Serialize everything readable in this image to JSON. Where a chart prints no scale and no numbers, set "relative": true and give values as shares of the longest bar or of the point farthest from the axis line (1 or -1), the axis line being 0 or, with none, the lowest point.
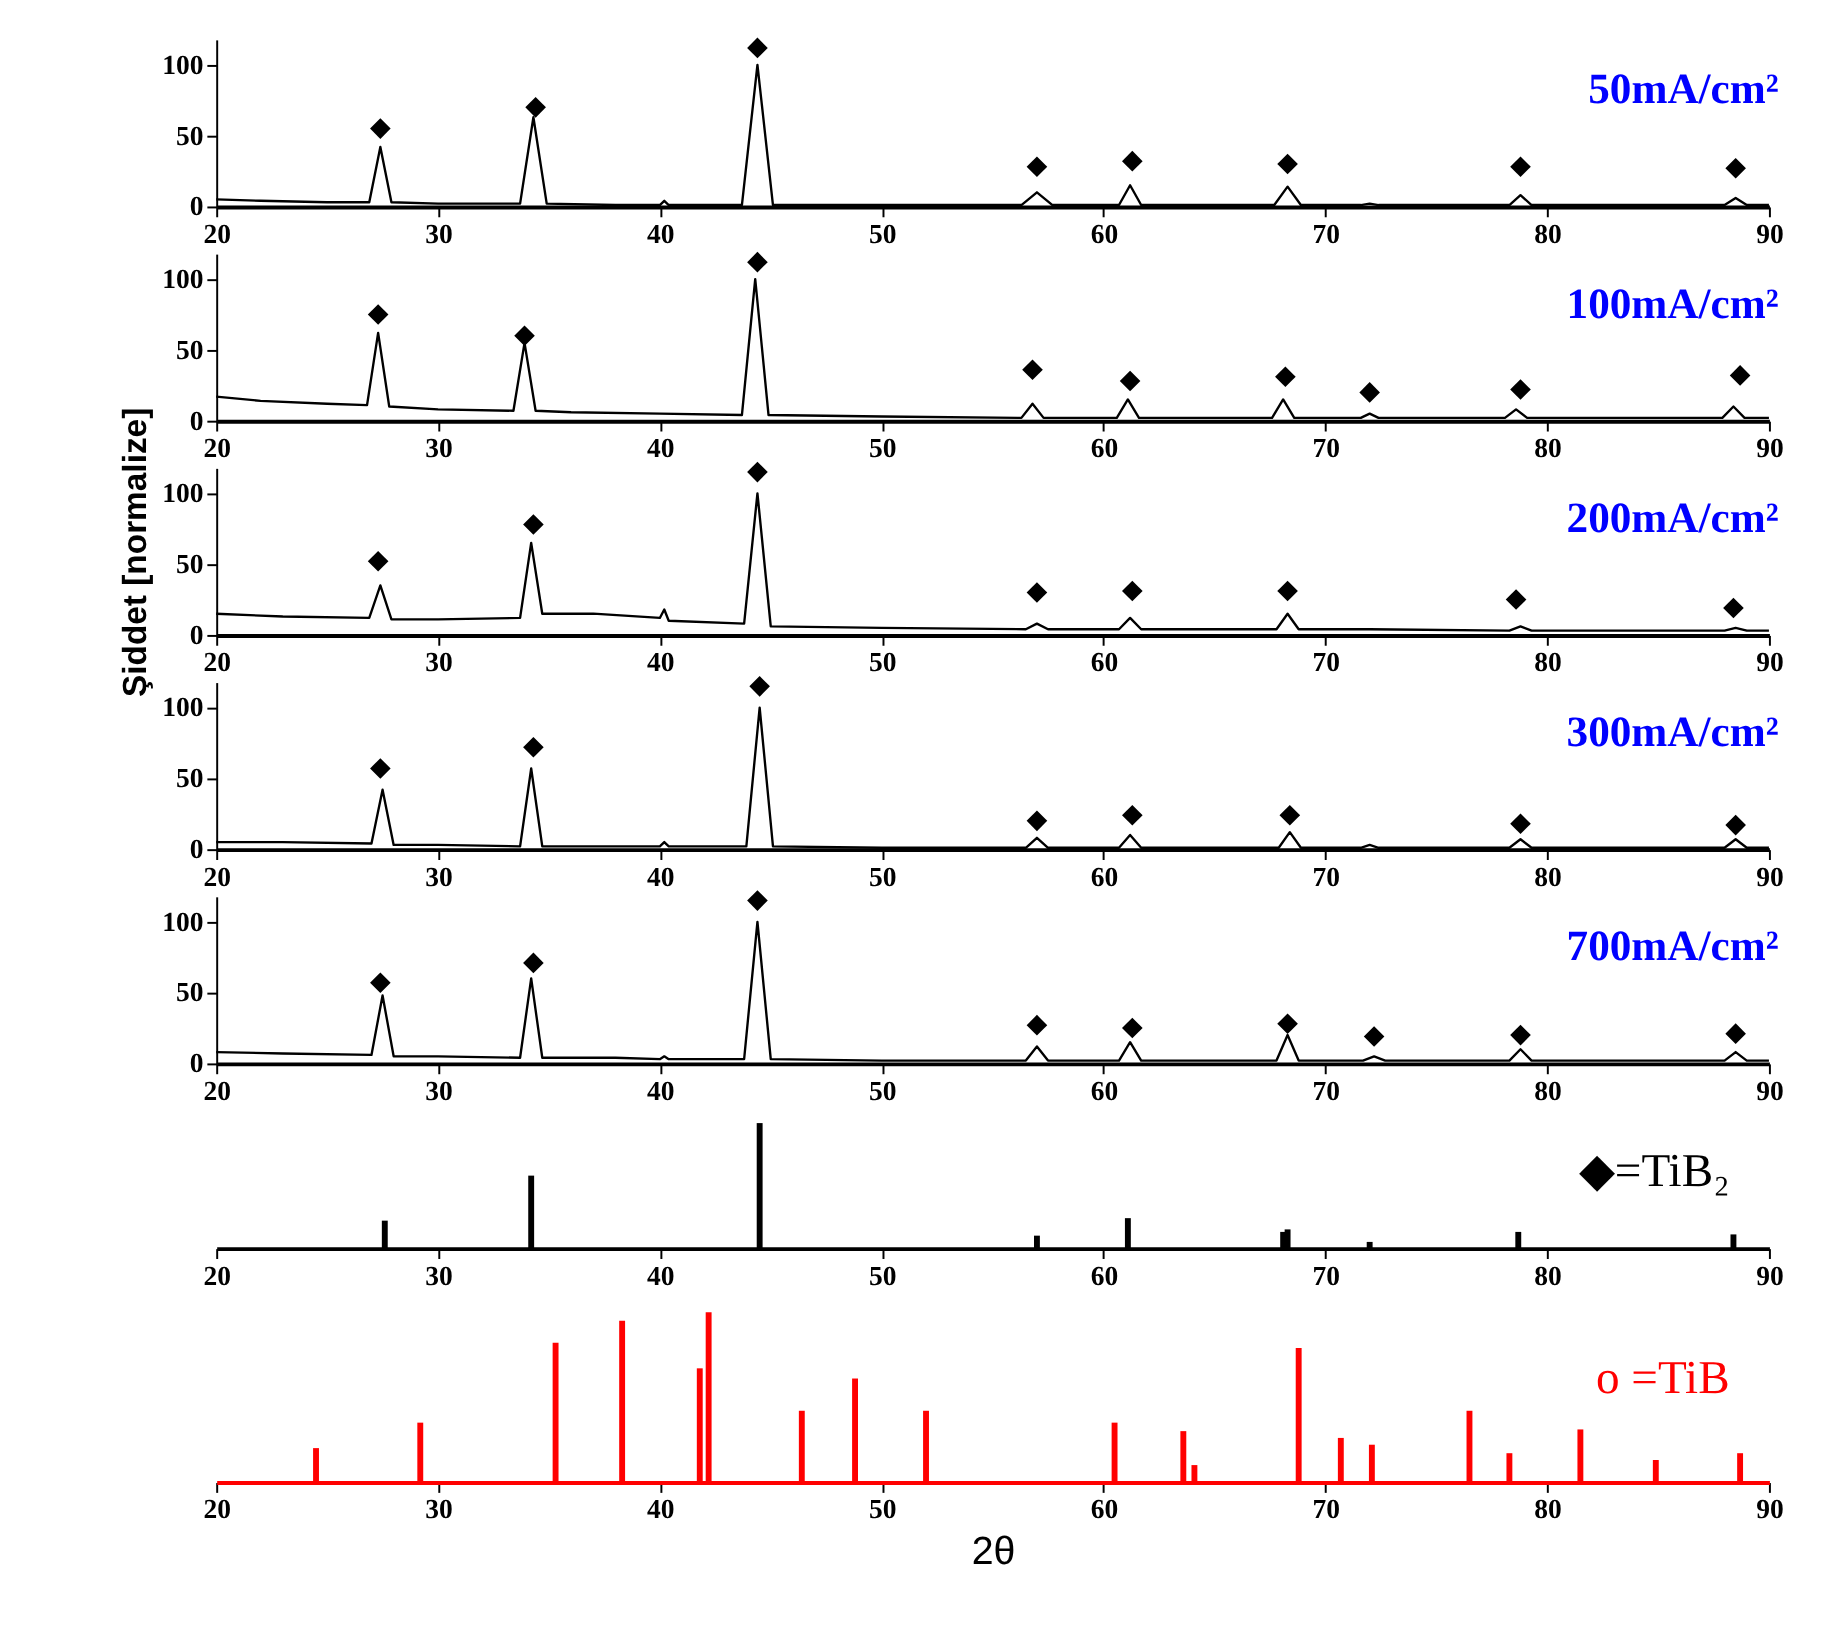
{
  "chart_data": [
    {
      "type": "line",
      "xlim": [
        20,
        90
      ],
      "xticks": [
        20,
        30,
        40,
        50,
        60,
        70,
        80,
        90
      ],
      "ylim": [
        0,
        118
      ],
      "yticks": [
        0,
        50,
        100
      ],
      "annotations": [
        "50mA/cm²"
      ],
      "series": [
        {
          "type": "line",
          "color": "#000000",
          "line_style": "solid",
          "x": [
            20,
            22,
            25,
            26.9,
            27.4,
            27.9,
            30,
            33.7,
            34.3,
            34.9,
            38,
            40,
            40.2,
            40.4,
            43.7,
            44.4,
            45.1,
            50,
            56.3,
            57,
            57.7,
            60.7,
            61.2,
            61.7,
            65,
            67.7,
            68.3,
            68.9,
            71.6,
            72,
            72.4,
            78.3,
            78.8,
            79.3,
            85,
            88,
            88.5,
            89,
            90
          ],
          "values": [
            5,
            4,
            3,
            3,
            42,
            3,
            2,
            2,
            63,
            2,
            1,
            1,
            4,
            1,
            1,
            100,
            1,
            1,
            1,
            10,
            1,
            1,
            15,
            1,
            1,
            1,
            14,
            1,
            1,
            2,
            1,
            1,
            8,
            1,
            1,
            1,
            6,
            1,
            1
          ]
        },
        {
          "type": "scatter",
          "color": "#000000",
          "marker": "diamond",
          "x": [
            27.4,
            34.4,
            44.4,
            57,
            61.3,
            68.3,
            78.8,
            88.5
          ],
          "values": [
            55,
            70,
            112,
            28,
            32,
            30,
            28,
            27
          ]
        }
      ]
    },
    {
      "type": "line",
      "xlim": [
        20,
        90
      ],
      "xticks": [
        20,
        30,
        40,
        50,
        60,
        70,
        80,
        90
      ],
      "ylim": [
        0,
        118
      ],
      "yticks": [
        0,
        50,
        100
      ],
      "annotations": [
        "100mA/cm²"
      ],
      "series": [
        {
          "type": "line",
          "color": "#000000",
          "line_style": "solid",
          "x": [
            20,
            22,
            25,
            26.8,
            27.3,
            27.8,
            30,
            33.4,
            33.9,
            34.4,
            36,
            40,
            43.7,
            44.3,
            44.9,
            50,
            56.3,
            56.8,
            57.3,
            60.6,
            61.1,
            61.6,
            65,
            67.6,
            68.1,
            68.6,
            71.6,
            72,
            72.4,
            78.1,
            78.6,
            79.1,
            85,
            87.9,
            88.4,
            88.9,
            90
          ],
          "values": [
            17,
            14,
            12,
            11,
            62,
            10,
            8,
            7,
            55,
            7,
            6,
            5,
            4,
            100,
            4,
            3,
            2,
            12,
            2,
            2,
            15,
            2,
            2,
            2,
            15,
            2,
            2,
            5,
            2,
            2,
            8,
            2,
            2,
            2,
            10,
            2,
            2
          ]
        },
        {
          "type": "scatter",
          "color": "#000000",
          "marker": "diamond",
          "x": [
            27.3,
            33.9,
            44.4,
            56.8,
            61.2,
            68.2,
            72,
            78.8,
            88.7
          ],
          "values": [
            75,
            60,
            112,
            36,
            28,
            31,
            20,
            22,
            32
          ]
        }
      ]
    },
    {
      "type": "line",
      "xlim": [
        20,
        90
      ],
      "xticks": [
        20,
        30,
        40,
        50,
        60,
        70,
        80,
        90
      ],
      "ylim": [
        0,
        118
      ],
      "yticks": [
        0,
        50,
        100
      ],
      "ylabel": "Şiddet [normalize]",
      "annotations": [
        "200mA/cm²"
      ],
      "series": [
        {
          "type": "line",
          "color": "#000000",
          "line_style": "solid",
          "x": [
            20,
            23,
            26.9,
            27.4,
            27.9,
            30,
            33.7,
            34.2,
            34.7,
            37,
            40,
            40.2,
            40.4,
            43.8,
            44.4,
            45,
            50,
            56.5,
            57,
            57.5,
            60.7,
            61.2,
            61.7,
            65,
            67.8,
            68.3,
            68.8,
            72,
            78.3,
            78.8,
            79.3,
            85,
            88,
            88.5,
            89,
            90
          ],
          "values": [
            15,
            13,
            12,
            35,
            11,
            11,
            12,
            65,
            15,
            15,
            12,
            18,
            10,
            8,
            100,
            6,
            5,
            4,
            8,
            4,
            4,
            12,
            4,
            4,
            4,
            15,
            4,
            4,
            3,
            6,
            3,
            3,
            3,
            5,
            3,
            3
          ]
        },
        {
          "type": "scatter",
          "color": "#000000",
          "marker": "diamond",
          "x": [
            27.3,
            34.3,
            44.4,
            57,
            61.3,
            68.3,
            78.6,
            88.4
          ],
          "values": [
            52,
            78,
            115,
            30,
            31,
            31,
            25,
            19
          ]
        }
      ]
    },
    {
      "type": "line",
      "xlim": [
        20,
        90
      ],
      "xticks": [
        20,
        30,
        40,
        50,
        60,
        70,
        80,
        90
      ],
      "ylim": [
        0,
        118
      ],
      "yticks": [
        0,
        50,
        100
      ],
      "annotations": [
        "300mA/cm²"
      ],
      "series": [
        {
          "type": "line",
          "color": "#000000",
          "line_style": "solid",
          "x": [
            20,
            23,
            27,
            27.5,
            28,
            30,
            33.7,
            34.2,
            34.7,
            38,
            40,
            40.2,
            40.4,
            43.9,
            44.5,
            45.1,
            50,
            56.5,
            57,
            57.5,
            60.7,
            61.2,
            61.7,
            65,
            67.9,
            68.4,
            68.9,
            71.6,
            72,
            72.4,
            78.3,
            78.8,
            79.3,
            85,
            88,
            88.5,
            89,
            90
          ],
          "values": [
            5,
            5,
            4,
            42,
            3,
            3,
            2,
            57,
            2,
            2,
            2,
            5,
            2,
            2,
            100,
            2,
            1,
            1,
            8,
            1,
            1,
            10,
            1,
            1,
            1,
            12,
            1,
            1,
            3,
            1,
            1,
            7,
            1,
            1,
            1,
            7,
            1,
            1
          ]
        },
        {
          "type": "scatter",
          "color": "#000000",
          "marker": "diamond",
          "x": [
            27.4,
            34.3,
            44.5,
            57,
            61.3,
            68.4,
            78.8,
            88.5
          ],
          "values": [
            57,
            72,
            115,
            20,
            24,
            24,
            18,
            17
          ]
        }
      ]
    },
    {
      "type": "line",
      "xlim": [
        20,
        90
      ],
      "xticks": [
        20,
        30,
        40,
        50,
        60,
        70,
        80,
        90
      ],
      "ylim": [
        0,
        118
      ],
      "yticks": [
        0,
        50,
        100
      ],
      "annotations": [
        "700mA/cm²"
      ],
      "series": [
        {
          "type": "line",
          "color": "#000000",
          "line_style": "solid",
          "x": [
            20,
            23,
            27,
            27.5,
            28,
            30,
            33.7,
            34.2,
            34.7,
            38,
            40,
            40.2,
            40.4,
            43.8,
            44.4,
            45,
            50,
            56.5,
            57,
            57.5,
            60.7,
            61.2,
            61.7,
            65,
            67.8,
            68.3,
            68.8,
            71.7,
            72.2,
            72.7,
            78.3,
            78.8,
            79.3,
            85,
            88,
            88.5,
            89,
            90
          ],
          "values": [
            8,
            7,
            6,
            48,
            5,
            5,
            4,
            60,
            4,
            4,
            3,
            5,
            3,
            3,
            100,
            3,
            2,
            2,
            12,
            2,
            2,
            15,
            2,
            2,
            2,
            20,
            2,
            2,
            5,
            2,
            2,
            10,
            2,
            2,
            2,
            8,
            2,
            2
          ]
        },
        {
          "type": "scatter",
          "color": "#000000",
          "marker": "diamond",
          "x": [
            27.4,
            34.3,
            44.4,
            57,
            61.3,
            68.3,
            72.2,
            78.8,
            88.5
          ],
          "values": [
            57,
            71,
            115,
            27,
            25,
            28,
            19,
            20,
            21
          ]
        }
      ]
    },
    {
      "type": "bar",
      "relative": true,
      "tick_labels": "x",
      "xlim": [
        20,
        90
      ],
      "xticks": [
        20,
        30,
        40,
        50,
        60,
        70,
        80,
        90
      ],
      "annotations": [
        "◆=TiB₂"
      ],
      "series": [
        {
          "color": "#000000",
          "x": [
            27.6,
            34.2,
            44.5,
            57,
            61.1,
            68.1,
            68.3,
            72,
            78.7,
            88.4
          ],
          "values": [
            0.22,
            0.58,
            1,
            0.1,
            0.24,
            0.13,
            0.15,
            0.05,
            0.13,
            0.11
          ]
        }
      ]
    },
    {
      "type": "bar",
      "relative": true,
      "tick_labels": "x",
      "xlim": [
        20,
        90
      ],
      "xticks": [
        20,
        30,
        40,
        50,
        60,
        70,
        80,
        90
      ],
      "xlabel": "2θ",
      "annotations": [
        "o =TiB"
      ],
      "series": [
        {
          "color": "#ff0000",
          "x": [
            24.5,
            29.2,
            35.3,
            38.3,
            41.8,
            42.2,
            46.4,
            48.8,
            52,
            60.5,
            63.6,
            64.1,
            68.8,
            70.7,
            72.1,
            76.5,
            78.3,
            81.5,
            84.9,
            88.7
          ],
          "values": [
            0.2,
            0.35,
            0.82,
            0.95,
            0.67,
            1,
            0.42,
            0.61,
            0.42,
            0.35,
            0.3,
            0.1,
            0.79,
            0.26,
            0.22,
            0.42,
            0.17,
            0.31,
            0.13,
            0.17
          ]
        }
      ]
    }
  ]
}
